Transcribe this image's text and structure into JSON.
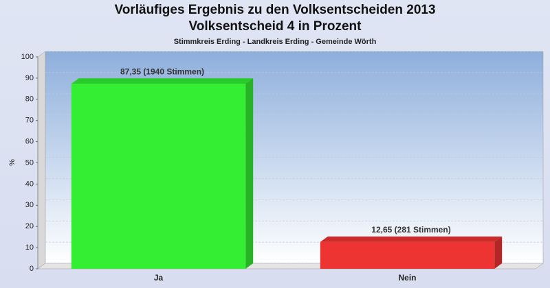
{
  "chart_data": {
    "type": "bar",
    "title": [
      "Vorläufiges Ergebnis zu den Volksentscheiden 2013",
      "Volksentscheid 4 in Prozent"
    ],
    "subtitle": "Stimmkreis Erding - Landkreis Erding - Gemeinde Wörth",
    "ylabel": "%",
    "categories": [
      "Ja",
      "Nein"
    ],
    "values": [
      87.35,
      12.65
    ],
    "value_labels": [
      "87,35 (1940 Stimmen)",
      "12,65 (281 Stimmen)"
    ],
    "colors": [
      "#33ee33",
      "#ee3333"
    ],
    "ylim": [
      0,
      100
    ],
    "yticks": [
      0,
      10,
      20,
      30,
      40,
      50,
      60,
      70,
      80,
      90,
      100
    ],
    "grid": true
  }
}
